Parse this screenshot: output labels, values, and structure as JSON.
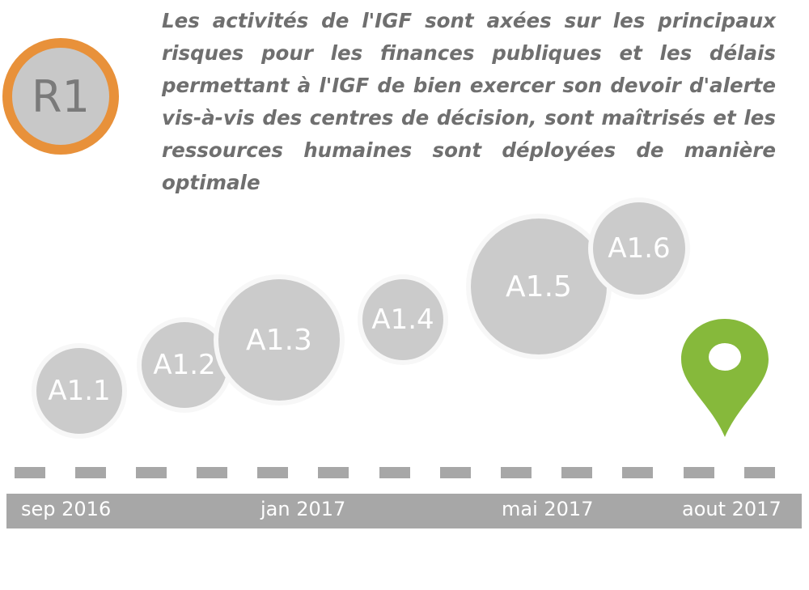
{
  "result": {
    "label": "R1",
    "description": "Les activités de l'IGF sont axées sur les principaux risques pour les finances publiques et les délais permettant à l'IGF de bien exercer son devoir d'alerte vis-à-vis des centres de décision, sont maîtrisés et les ressources humaines sont déployées de manière optimale"
  },
  "colors": {
    "badge_ring": "#e8913a",
    "bubble": "#cbcbcb",
    "pin": "#86b93b",
    "timeline": "#a7a7a7"
  },
  "activities": [
    {
      "label": "A1.1"
    },
    {
      "label": "A1.2"
    },
    {
      "label": "A1.3"
    },
    {
      "label": "A1.4"
    },
    {
      "label": "A1.5"
    },
    {
      "label": "A1.6"
    }
  ],
  "milestone_icon": "map-pin-icon",
  "timeline": {
    "labels": [
      "sep 2016",
      "jan 2017",
      "mai 2017",
      "aout 2017"
    ]
  }
}
